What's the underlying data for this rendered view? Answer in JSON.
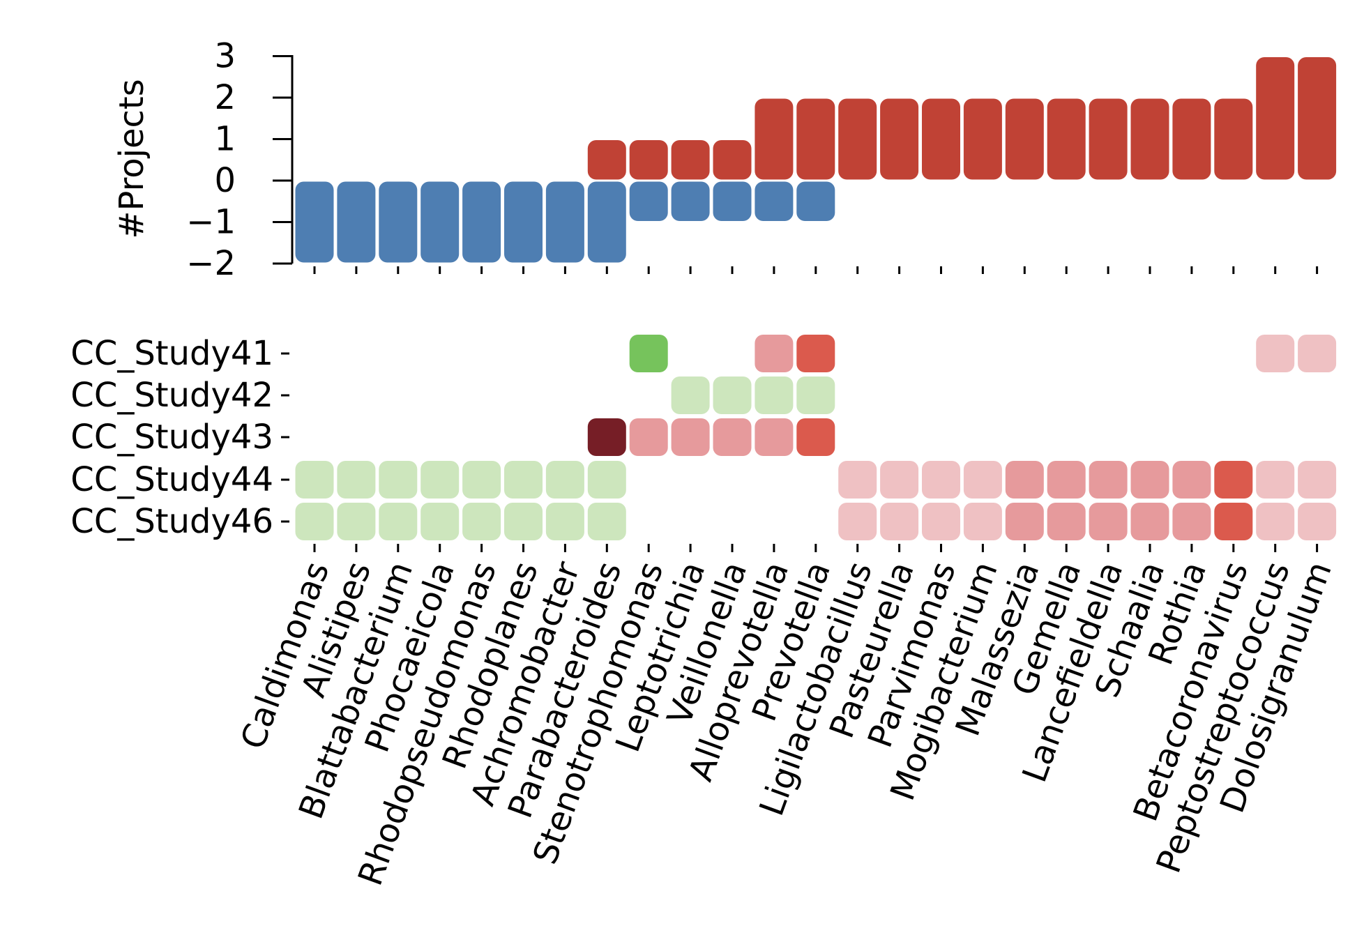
{
  "chart_data": [
    {
      "type": "bar",
      "ylabel": "#Projects",
      "ylim": [
        -2,
        3
      ],
      "yticks": [
        "3",
        "2",
        "1",
        "0",
        "−1",
        "−2"
      ],
      "ytick_values": [
        3,
        2,
        1,
        0,
        -1,
        -2
      ],
      "categories": [
        "Caldimonas",
        "Alistipes",
        "Blattabacterium",
        "Phocaeicola",
        "Rhodopseudomonas",
        "Rhodoplanes",
        "Achromobacter",
        "Parabacteroides",
        "Stenotrophomonas",
        "Leptotrichia",
        "Veillonella",
        "Alloprevotella",
        "Prevotella",
        "Ligilactobacillus",
        "Pasteurella",
        "Parvimonas",
        "Mogibacterium",
        "Malassezia",
        "Gemella",
        "Lancefieldella",
        "Schaalia",
        "Rothia",
        "Betacoronavirus",
        "Peptostreptococcus",
        "Dolosigranulum"
      ],
      "series": [
        {
          "values": [
            0,
            0,
            0,
            0,
            0,
            0,
            0,
            1,
            1,
            1,
            1,
            2,
            2,
            2,
            2,
            2,
            2,
            2,
            2,
            2,
            2,
            2,
            2,
            3,
            3
          ],
          "color": "#c04235"
        },
        {
          "values": [
            -2,
            -2,
            -2,
            -2,
            -2,
            -2,
            -2,
            -2,
            -1,
            -1,
            -1,
            -1,
            -1,
            0,
            0,
            0,
            0,
            0,
            0,
            0,
            0,
            0,
            0,
            0,
            0
          ],
          "color": "#4e7eb2"
        }
      ]
    },
    {
      "type": "heatmap",
      "rows": [
        "CC_Study41",
        "CC_Study42",
        "CC_Study43",
        "CC_Study44",
        "CC_Study46"
      ],
      "columns_from": "categories",
      "cells": [
        [
          null,
          null,
          null,
          null,
          null,
          null,
          null,
          null,
          "#76c35c",
          null,
          null,
          "#e69a9c",
          "#db5a4d",
          null,
          null,
          null,
          null,
          null,
          null,
          null,
          null,
          null,
          null,
          "#efc1c3",
          "#efc1c3"
        ],
        [
          null,
          null,
          null,
          null,
          null,
          null,
          null,
          null,
          null,
          "#cde6bd",
          "#cde6bd",
          "#cde6bd",
          "#cde6bd",
          null,
          null,
          null,
          null,
          null,
          null,
          null,
          null,
          null,
          null,
          null,
          null
        ],
        [
          null,
          null,
          null,
          null,
          null,
          null,
          null,
          "#761e26",
          "#e69a9c",
          "#e69a9c",
          "#e69a9c",
          "#e69a9c",
          "#db5a4d",
          null,
          null,
          null,
          null,
          null,
          null,
          null,
          null,
          null,
          null,
          null,
          null
        ],
        [
          "#cde6bd",
          "#cde6bd",
          "#cde6bd",
          "#cde6bd",
          "#cde6bd",
          "#cde6bd",
          "#cde6bd",
          "#cde6bd",
          null,
          null,
          null,
          null,
          null,
          "#efc1c3",
          "#efc1c3",
          "#efc1c3",
          "#efc1c3",
          "#e69a9c",
          "#e69a9c",
          "#e69a9c",
          "#e69a9c",
          "#e69a9c",
          "#db5a4d",
          "#efc1c3",
          "#efc1c3"
        ],
        [
          "#cde6bd",
          "#cde6bd",
          "#cde6bd",
          "#cde6bd",
          "#cde6bd",
          "#cde6bd",
          "#cde6bd",
          "#cde6bd",
          null,
          null,
          null,
          null,
          null,
          "#efc1c3",
          "#efc1c3",
          "#efc1c3",
          "#efc1c3",
          "#e69a9c",
          "#e69a9c",
          "#e69a9c",
          "#e69a9c",
          "#e69a9c",
          "#db5a4d",
          "#efc1c3",
          "#efc1c3"
        ]
      ]
    }
  ]
}
